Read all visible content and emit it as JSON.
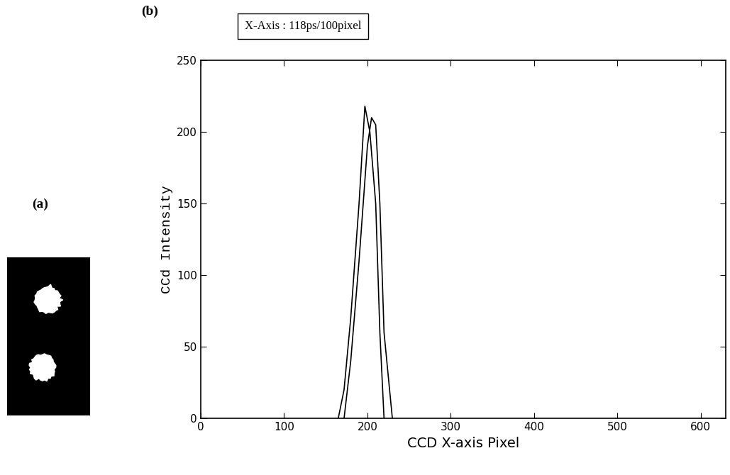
{
  "chart_data": {
    "type": "line",
    "subtitle": "X-Axis : 118ps/100pixel",
    "annotations": [
      "(a)",
      "(b)"
    ],
    "x_label": "CCD X-axis Pixel",
    "y_label": "CCd Intensity",
    "series": [
      {
        "color": "#000000",
        "x": [
          165,
          172,
          180,
          190,
          197,
          203,
          210,
          215,
          220
        ],
        "values": [
          0,
          20,
          70,
          150,
          218,
          200,
          150,
          60,
          0
        ]
      },
      {
        "color": "#000000",
        "x": [
          172,
          180,
          190,
          200,
          205,
          210,
          215,
          220,
          225,
          230
        ],
        "values": [
          0,
          40,
          110,
          190,
          210,
          205,
          150,
          60,
          30,
          0
        ]
      }
    ],
    "xlim": [
      0,
      630
    ],
    "xticks": [
      0,
      100,
      200,
      300,
      400,
      500,
      600
    ],
    "ylim": [
      0,
      250
    ],
    "yticks": [
      0,
      50,
      100,
      150,
      200,
      250
    ],
    "grid": false
  }
}
